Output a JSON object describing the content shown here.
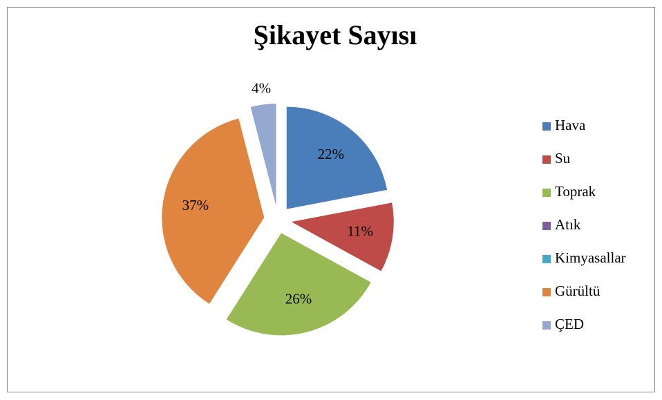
{
  "chart_data": {
    "type": "pie",
    "title": "Şikayet Sayısı",
    "categories": [
      "Hava",
      "Su",
      "Toprak",
      "Atık",
      "Kimyasallar",
      "Gürültü",
      "ÇED"
    ],
    "values": [
      22,
      11,
      26,
      0,
      0,
      37,
      4
    ],
    "value_labels": [
      "22%",
      "11%",
      "26%",
      null,
      null,
      "37%",
      "4%"
    ],
    "colors": [
      "#4a7ebb",
      "#be4b48",
      "#98b954",
      "#7d60a0",
      "#46aac5",
      "#e0853f",
      "#95a8d0"
    ],
    "legend": "right"
  }
}
